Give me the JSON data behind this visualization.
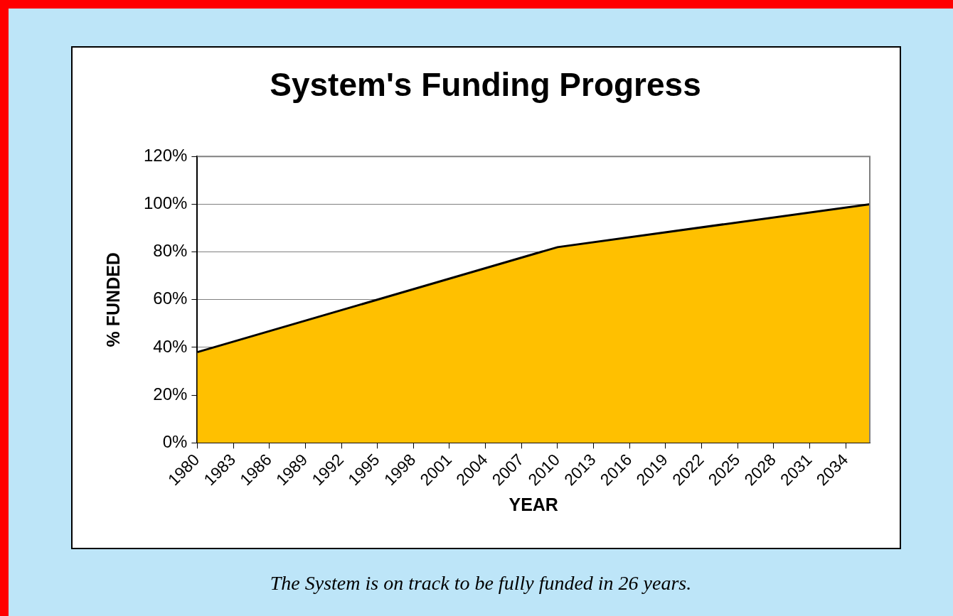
{
  "chart_data": {
    "type": "area",
    "title": "System's Funding Progress",
    "xlabel": "YEAR",
    "ylabel": "% FUNDED",
    "x": [
      1980,
      2010,
      2036
    ],
    "values": [
      38,
      82,
      100
    ],
    "color": "#ffc000",
    "xlim": [
      1980,
      2036
    ],
    "xticks": [
      1980,
      1983,
      1986,
      1989,
      1992,
      1995,
      1998,
      2001,
      2004,
      2007,
      2010,
      2013,
      2016,
      2019,
      2022,
      2025,
      2028,
      2031,
      2034
    ],
    "ylim": [
      0,
      120
    ],
    "yticks": [
      {
        "value": 0,
        "label": "0%"
      },
      {
        "value": 20,
        "label": "20%"
      },
      {
        "value": 40,
        "label": "40%"
      },
      {
        "value": 60,
        "label": "60%"
      },
      {
        "value": 80,
        "label": "80%"
      },
      {
        "value": 100,
        "label": "100%"
      },
      {
        "value": 120,
        "label": "120%"
      }
    ],
    "grid": "y",
    "annotations": [
      "The System is on track to be fully funded in 26 years."
    ]
  }
}
